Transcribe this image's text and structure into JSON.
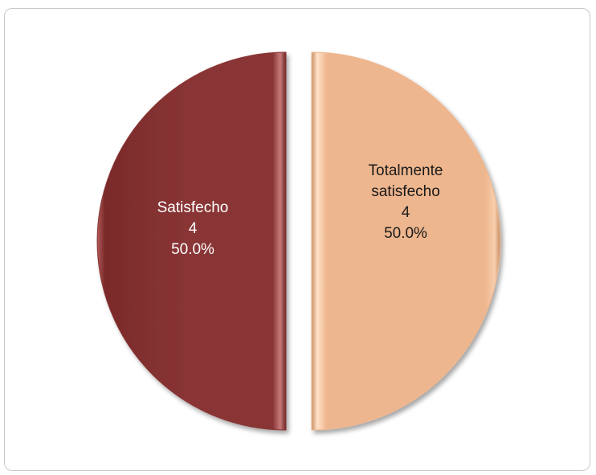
{
  "chart_data": {
    "type": "pie",
    "slices": [
      {
        "name": "Satisfecho",
        "value": 4,
        "percent": "50.0%",
        "color": "#8a3535",
        "label_color": "#ffffff",
        "label_lines": [
          "Satisfecho",
          "4",
          "50.0%"
        ]
      },
      {
        "name": "Totalmente satisfecho",
        "value": 4,
        "percent": "50.0%",
        "color": "#eeb68e",
        "label_color": "#1a1a1a",
        "label_lines": [
          "Totalmente",
          "satisfecho",
          "4",
          "50.0%"
        ]
      }
    ]
  }
}
